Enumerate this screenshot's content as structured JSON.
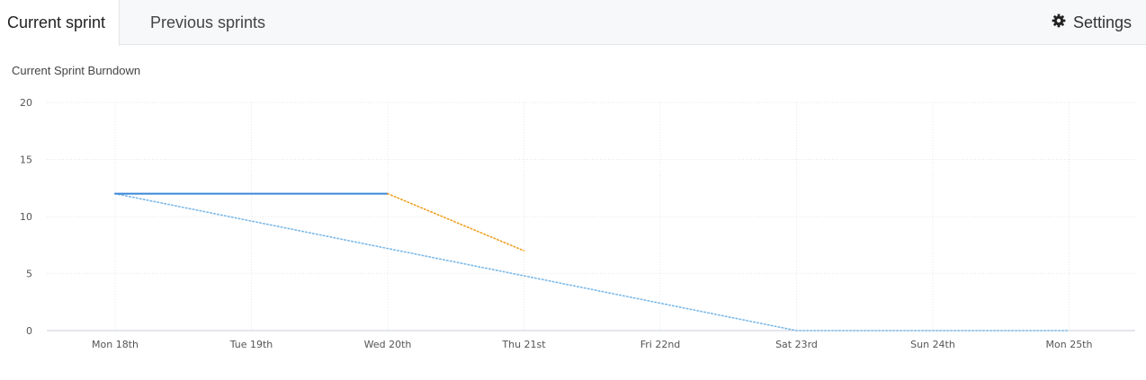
{
  "tabs": {
    "current_label": "Current sprint",
    "previous_label": "Previous sprints"
  },
  "settings": {
    "label": "Settings",
    "icon": "gear-icon"
  },
  "chart_data": {
    "type": "line",
    "title": "Current Sprint Burndown",
    "xlabel": "",
    "ylabel": "",
    "categories": [
      "Mon 18th",
      "Tue 19th",
      "Wed 20th",
      "Thu 21st",
      "Fri 22nd",
      "Sat 23rd",
      "Sun 24th",
      "Mon 25th"
    ],
    "ylim": [
      0,
      20
    ],
    "yticks": [
      0,
      5,
      10,
      15,
      20
    ],
    "grid": true,
    "legend": "none",
    "series": [
      {
        "values": [
          12,
          9.6,
          7.2,
          4.8,
          2.4,
          0,
          0,
          0
        ],
        "color": "#7ab8e8",
        "style": "dotted"
      },
      {
        "values": [
          12,
          12,
          12,
          null,
          null,
          null,
          null,
          null
        ],
        "color": "#3a87d6",
        "style": "solid"
      },
      {
        "values": [
          null,
          null,
          12,
          7,
          null,
          null,
          null,
          null
        ],
        "color": "#f0a020",
        "style": "dotted"
      }
    ]
  }
}
